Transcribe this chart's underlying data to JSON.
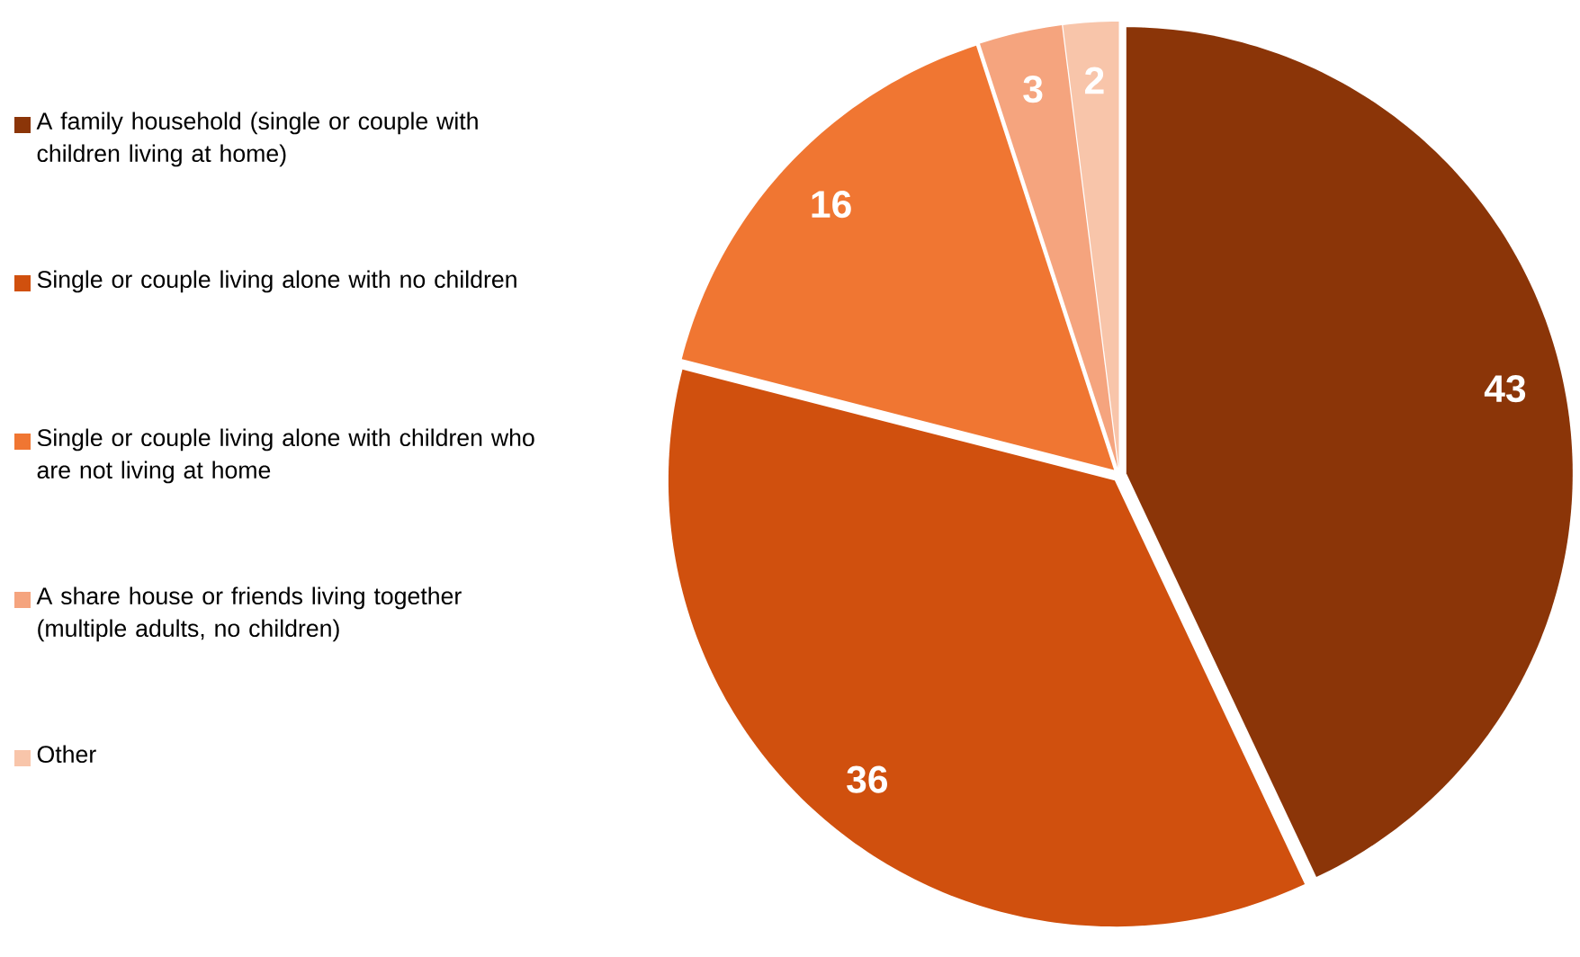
{
  "chart_data": {
    "type": "pie",
    "categories": [
      "A family household (single or couple with children living at home)",
      "Single or couple living alone with no children",
      "Single or couple living alone with children who are not living at home",
      "A share house or friends living together (multiple adults, no children)",
      "Other"
    ],
    "values": [
      43,
      36,
      16,
      3,
      2
    ],
    "colors": [
      "#8b3508",
      "#d0500e",
      "#f07632",
      "#f5a47e",
      "#f8c5aa"
    ],
    "data_labels": true,
    "legend": "left"
  }
}
